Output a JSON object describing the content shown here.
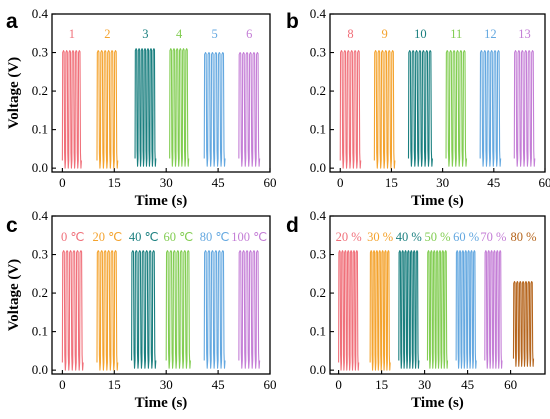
{
  "chart_data": [
    {
      "panel": "a",
      "type": "line",
      "xlabel": "Time (s)",
      "ylabel": "Voltage (V)",
      "xlim": [
        -3,
        60
      ],
      "ylim": [
        -0.01,
        0.4
      ],
      "xticks": [
        0,
        15,
        30,
        45,
        60
      ],
      "yticks": [
        0.0,
        0.1,
        0.2,
        0.3,
        0.4
      ],
      "series": [
        {
          "name": "1",
          "color": "#f0707a",
          "t_start": 0,
          "t_end": 5.5,
          "v_min": 0.0,
          "v_max": 0.305,
          "cycles": 6
        },
        {
          "name": "2",
          "color": "#f4a32e",
          "t_start": 10,
          "t_end": 16,
          "v_min": 0.0,
          "v_max": 0.305,
          "cycles": 6
        },
        {
          "name": "3",
          "color": "#1a7f7f",
          "t_start": 21,
          "t_end": 27,
          "v_min": 0.005,
          "v_max": 0.31,
          "cycles": 7
        },
        {
          "name": "4",
          "color": "#82cd52",
          "t_start": 31,
          "t_end": 36.5,
          "v_min": 0.005,
          "v_max": 0.31,
          "cycles": 6
        },
        {
          "name": "5",
          "color": "#64a8e0",
          "t_start": 41,
          "t_end": 47,
          "v_min": 0.005,
          "v_max": 0.3,
          "cycles": 6
        },
        {
          "name": "6",
          "color": "#c47ed6",
          "t_start": 51,
          "t_end": 57,
          "v_min": 0.005,
          "v_max": 0.3,
          "cycles": 6
        }
      ]
    },
    {
      "panel": "b",
      "type": "line",
      "xlabel": "Time (s)",
      "ylabel": "",
      "xlim": [
        -3,
        60
      ],
      "ylim": [
        -0.01,
        0.4
      ],
      "xticks": [
        0,
        15,
        30,
        45,
        60
      ],
      "yticks": [
        0.0,
        0.1,
        0.2,
        0.3,
        0.4
      ],
      "series": [
        {
          "name": "8",
          "color": "#f0707a",
          "t_start": 0,
          "t_end": 6,
          "v_min": 0.0,
          "v_max": 0.305,
          "cycles": 6
        },
        {
          "name": "9",
          "color": "#f4a32e",
          "t_start": 10,
          "t_end": 16,
          "v_min": 0.0,
          "v_max": 0.305,
          "cycles": 6
        },
        {
          "name": "10",
          "color": "#1a7f7f",
          "t_start": 20,
          "t_end": 27,
          "v_min": 0.005,
          "v_max": 0.305,
          "cycles": 7
        },
        {
          "name": "11",
          "color": "#82cd52",
          "t_start": 31,
          "t_end": 37,
          "v_min": 0.005,
          "v_max": 0.305,
          "cycles": 6
        },
        {
          "name": "12",
          "color": "#64a8e0",
          "t_start": 41,
          "t_end": 47,
          "v_min": 0.005,
          "v_max": 0.305,
          "cycles": 6
        },
        {
          "name": "13",
          "color": "#c47ed6",
          "t_start": 51,
          "t_end": 57,
          "v_min": 0.005,
          "v_max": 0.305,
          "cycles": 6
        }
      ]
    },
    {
      "panel": "c",
      "type": "line",
      "xlabel": "Time (s)",
      "ylabel": "Voltage (V)",
      "xlim": [
        -3,
        60
      ],
      "ylim": [
        -0.01,
        0.4
      ],
      "xticks": [
        0,
        15,
        30,
        45,
        60
      ],
      "yticks": [
        0.0,
        0.1,
        0.2,
        0.3,
        0.4
      ],
      "series": [
        {
          "name": "0 ℃",
          "color": "#f0707a",
          "t_start": 0,
          "t_end": 6,
          "v_min": 0.0,
          "v_max": 0.31,
          "cycles": 6
        },
        {
          "name": "20 ℃",
          "color": "#f4a32e",
          "t_start": 10,
          "t_end": 16,
          "v_min": 0.0,
          "v_max": 0.31,
          "cycles": 6
        },
        {
          "name": "40 ℃",
          "color": "#1a7f7f",
          "t_start": 20,
          "t_end": 27,
          "v_min": 0.005,
          "v_max": 0.31,
          "cycles": 7
        },
        {
          "name": "60 ℃",
          "color": "#82cd52",
          "t_start": 30,
          "t_end": 37,
          "v_min": 0.005,
          "v_max": 0.31,
          "cycles": 7
        },
        {
          "name": "80 ℃",
          "color": "#64a8e0",
          "t_start": 41,
          "t_end": 47,
          "v_min": 0.005,
          "v_max": 0.31,
          "cycles": 6
        },
        {
          "name": "100 ℃",
          "color": "#c47ed6",
          "t_start": 51,
          "t_end": 57,
          "v_min": 0.005,
          "v_max": 0.31,
          "cycles": 6
        }
      ]
    },
    {
      "panel": "d",
      "type": "line",
      "xlabel": "Time (s)",
      "ylabel": "",
      "xlim": [
        -3,
        72
      ],
      "ylim": [
        -0.01,
        0.4
      ],
      "xticks": [
        0,
        15,
        30,
        45,
        60
      ],
      "yticks": [
        0.0,
        0.1,
        0.2,
        0.3,
        0.4
      ],
      "series": [
        {
          "name": "20 %",
          "color": "#f0707a",
          "t_start": 0,
          "t_end": 7,
          "v_min": 0.0,
          "v_max": 0.31,
          "cycles": 7
        },
        {
          "name": "30 %",
          "color": "#f4a32e",
          "t_start": 11,
          "t_end": 18,
          "v_min": 0.0,
          "v_max": 0.31,
          "cycles": 7
        },
        {
          "name": "40 %",
          "color": "#1a7f7f",
          "t_start": 21,
          "t_end": 28,
          "v_min": 0.005,
          "v_max": 0.31,
          "cycles": 7
        },
        {
          "name": "50 %",
          "color": "#82cd52",
          "t_start": 31,
          "t_end": 38,
          "v_min": 0.005,
          "v_max": 0.31,
          "cycles": 7
        },
        {
          "name": "60 %",
          "color": "#64a8e0",
          "t_start": 41,
          "t_end": 48,
          "v_min": 0.005,
          "v_max": 0.31,
          "cycles": 7
        },
        {
          "name": "70 %",
          "color": "#c47ed6",
          "t_start": 51,
          "t_end": 57,
          "v_min": 0.005,
          "v_max": 0.31,
          "cycles": 6
        },
        {
          "name": "80 %",
          "color": "#b5651d",
          "t_start": 61,
          "t_end": 68,
          "v_min": 0.01,
          "v_max": 0.23,
          "cycles": 7
        }
      ]
    }
  ]
}
